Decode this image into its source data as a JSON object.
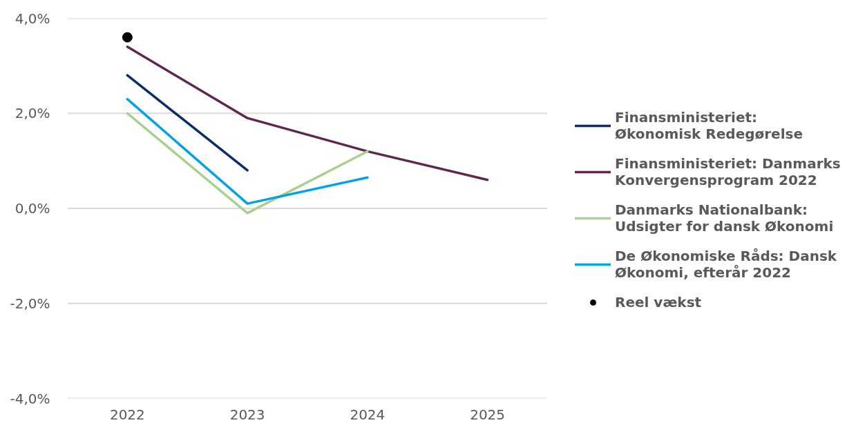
{
  "chart_data": {
    "type": "line",
    "categories": [
      "2022",
      "2023",
      "2024",
      "2025"
    ],
    "series": [
      {
        "name": "Finansministeriet: Økonomisk Redegørelse",
        "color": "#0b2e68",
        "values": [
          2.8,
          0.8,
          null,
          null
        ]
      },
      {
        "name": "Finansministeriet: Danmarks Konvergensprogram 2022",
        "color": "#5e2750",
        "values": [
          3.4,
          1.9,
          1.2,
          0.6
        ]
      },
      {
        "name": "Danmarks Nationalbank: Udsigter for dansk Økonomi",
        "color": "#a9d08e",
        "values": [
          2.0,
          -0.1,
          1.2,
          null
        ]
      },
      {
        "name": "De Økonomiske Råds: Dansk Økonomi, efterår 2022",
        "color": "#00a2e8",
        "values": [
          2.3,
          0.1,
          0.65,
          null
        ]
      },
      {
        "name": "Reel vækst",
        "type": "scatter",
        "marker": "circle",
        "color": "#000000",
        "values": [
          3.6,
          null,
          null,
          null
        ]
      }
    ],
    "ylim": [
      -4,
      4
    ],
    "yticks": [
      {
        "value": -4,
        "label": "-4,0%"
      },
      {
        "value": -2,
        "label": "-2,0%"
      },
      {
        "value": 0,
        "label": "0,0%"
      },
      {
        "value": 2,
        "label": "2,0%"
      },
      {
        "value": 4,
        "label": "4,0%"
      }
    ],
    "grid": "y",
    "legend": "right"
  }
}
